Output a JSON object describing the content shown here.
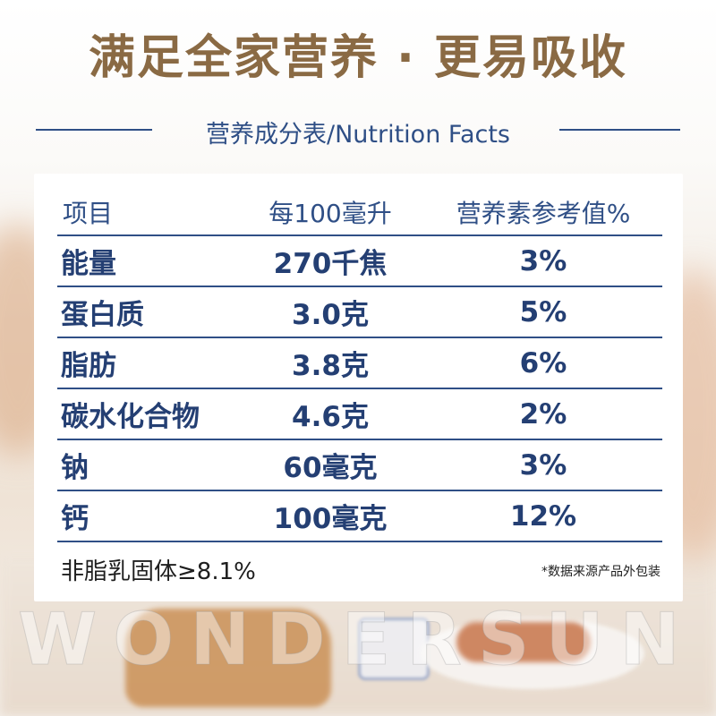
{
  "headline": "满足全家营养 · 更易吸收",
  "subtitle": "营养成分表/Nutrition Facts",
  "table": {
    "headers": [
      "项目",
      "每100毫升",
      "营养素参考值%"
    ],
    "rows": [
      {
        "item": "能量",
        "per100ml": "270千焦",
        "nrv": "3%"
      },
      {
        "item": "蛋白质",
        "per100ml": "3.0克",
        "nrv": "5%"
      },
      {
        "item": "脂肪",
        "per100ml": "3.8克",
        "nrv": "6%"
      },
      {
        "item": "碳水化合物",
        "per100ml": "4.6克",
        "nrv": "2%"
      },
      {
        "item": "钠",
        "per100ml": "60毫克",
        "nrv": "3%"
      },
      {
        "item": "钙",
        "per100ml": "100毫克",
        "nrv": "12%"
      }
    ]
  },
  "footer": {
    "solids_note": "非脂乳固体≥8.1%",
    "source_note": "*数据来源产品外包装"
  },
  "watermark": "WONDERSUN",
  "colors": {
    "headline": "#8a6a44",
    "table_text": "#243f73",
    "rule": "#2f4f86"
  }
}
